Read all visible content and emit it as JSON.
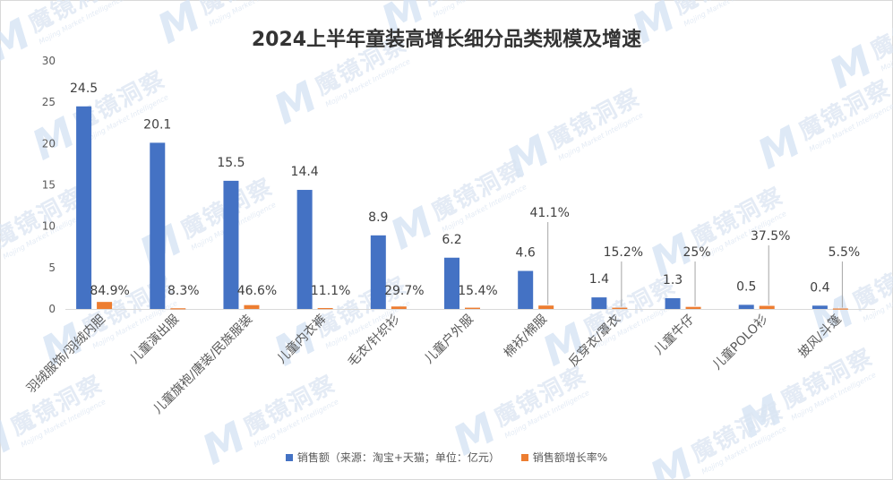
{
  "watermark": {
    "logo_letter": "M",
    "text_cn": "魔镜洞察",
    "text_en": "Mojing Market Intelligence"
  },
  "chart_data": {
    "type": "bar",
    "title": "2024上半年童装高增长细分品类规模及增速",
    "categories": [
      "羽绒服饰/羽绒内胆",
      "儿童演出服",
      "儿童旗袍/唐装/民族服装",
      "儿童内衣裤",
      "毛衣/针织衫",
      "儿童户外服",
      "棉袄/棉服",
      "反穿衣/罩衣",
      "儿童牛仔",
      "儿童POLO衫",
      "披风/斗篷"
    ],
    "series": [
      {
        "name": "销售额（来源：淘宝+天猫；单位：亿元）",
        "color": "#4472c4",
        "values": [
          24.5,
          20.1,
          15.5,
          14.4,
          8.9,
          6.2,
          4.6,
          1.4,
          1.3,
          0.5,
          0.4
        ],
        "labels": [
          "24.5",
          "20.1",
          "15.5",
          "14.4",
          "8.9",
          "6.2",
          "4.6",
          "1.4",
          "1.3",
          "0.5",
          "0.4"
        ]
      },
      {
        "name": "销售额增长率%",
        "color": "#ed7d31",
        "values": [
          0.849,
          0.083,
          0.466,
          0.111,
          0.297,
          0.154,
          0.411,
          0.152,
          0.25,
          0.375,
          0.055
        ],
        "labels": [
          "84.9%",
          "8.3%",
          "46.6%",
          "11.1%",
          "29.7%",
          "15.4%",
          "41.1%",
          "15.2%",
          "25%",
          "37.5%",
          "5.5%"
        ]
      }
    ],
    "yticks": [
      "0",
      "5",
      "10",
      "15",
      "20",
      "25",
      "30"
    ],
    "ylim": [
      0,
      30
    ],
    "grid": false,
    "legend_position": "bottom"
  }
}
